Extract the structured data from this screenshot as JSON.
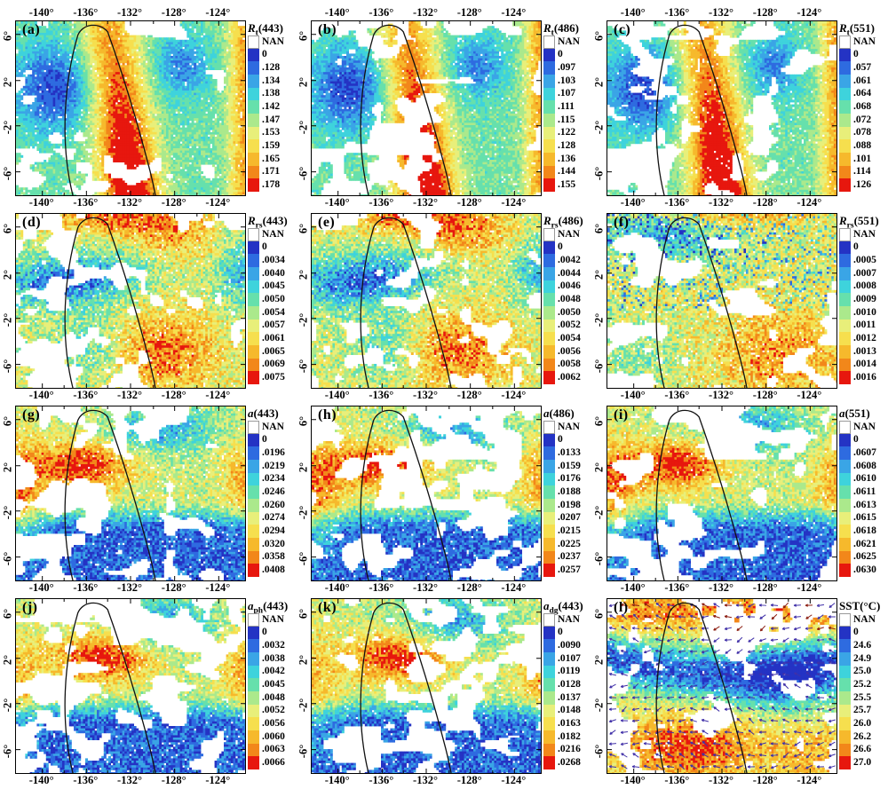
{
  "figure": {
    "x_ticks": [
      "-140°",
      "-136°",
      "-132°",
      "-128°",
      "-124°"
    ],
    "y_ticks": [
      "6°",
      "2°",
      "-2°",
      "-6°"
    ],
    "palette": [
      "#ffffff",
      "#2433c4",
      "#2e6be0",
      "#3aa5e6",
      "#3ed3dc",
      "#66e0ac",
      "#abe98c",
      "#e8ef7a",
      "#f6df4e",
      "#f6b92c",
      "#f2871a",
      "#e7170e"
    ],
    "contour_color": "#111111",
    "arrow_color": "#4030a8",
    "arrow_color_alt": "#8b1c10",
    "panels": [
      {
        "letter": "(a)",
        "sym": "R",
        "sub": "t",
        "arg": "(443)",
        "italic": true,
        "pattern": "rt",
        "cbar": [
          "NAN",
          "0",
          ".128",
          ".134",
          ".138",
          ".142",
          ".147",
          ".153",
          ".159",
          ".165",
          ".171",
          ".178"
        ]
      },
      {
        "letter": "(b)",
        "sym": "R",
        "sub": "t",
        "arg": "(486)",
        "italic": true,
        "pattern": "rt",
        "cbar": [
          "NAN",
          "0",
          ".097",
          ".103",
          ".107",
          ".111",
          ".115",
          ".122",
          ".128",
          ".136",
          ".144",
          ".155"
        ]
      },
      {
        "letter": "(c)",
        "sym": "R",
        "sub": "t",
        "arg": "(551)",
        "italic": true,
        "pattern": "rt",
        "cbar": [
          "NAN",
          "0",
          ".057",
          ".061",
          ".064",
          ".068",
          ".072",
          ".078",
          ".088",
          ".101",
          ".114",
          ".126"
        ]
      },
      {
        "letter": "(d)",
        "sym": "R",
        "sub": "rs",
        "arg": "(443)",
        "italic": true,
        "pattern": "rrs",
        "cbar": [
          "NAN",
          "0",
          ".0034",
          ".0040",
          ".0045",
          ".0050",
          ".0054",
          ".0057",
          ".0061",
          ".0065",
          ".0069",
          ".0075"
        ]
      },
      {
        "letter": "(e)",
        "sym": "R",
        "sub": "rs",
        "arg": "(486)",
        "italic": true,
        "pattern": "rrs",
        "cbar": [
          "NAN",
          "0",
          ".0042",
          ".0044",
          ".0046",
          ".0048",
          ".0050",
          ".0052",
          ".0054",
          ".0056",
          ".0058",
          ".0062"
        ]
      },
      {
        "letter": "(f)",
        "sym": "R",
        "sub": "rs",
        "arg": "(551)",
        "italic": true,
        "pattern": "rrs551",
        "cbar": [
          "NAN",
          "0",
          ".0005",
          ".0007",
          ".0008",
          ".0009",
          ".0010",
          ".0011",
          ".0012",
          ".0013",
          ".0014",
          ".0016"
        ]
      },
      {
        "letter": "(g)",
        "sym": "a",
        "sub": "",
        "arg": "(443)",
        "italic": true,
        "pattern": "abs",
        "cbar": [
          "NAN",
          "0",
          ".0196",
          ".0219",
          ".0234",
          ".0246",
          ".0260",
          ".0274",
          ".0294",
          ".0320",
          ".0358",
          ".0408"
        ]
      },
      {
        "letter": "(h)",
        "sym": "a",
        "sub": "",
        "arg": "(486)",
        "italic": true,
        "pattern": "abs",
        "cbar": [
          "NAN",
          "0",
          ".0133",
          ".0159",
          ".0176",
          ".0188",
          ".0198",
          ".0207",
          ".0215",
          ".0225",
          ".0237",
          ".0257"
        ]
      },
      {
        "letter": "(i)",
        "sym": "a",
        "sub": "",
        "arg": "(551)",
        "italic": true,
        "pattern": "abs",
        "cbar": [
          "NAN",
          "0",
          ".0607",
          ".0608",
          ".0610",
          ".0611",
          ".0613",
          ".0615",
          ".0618",
          ".0621",
          ".0625",
          ".0630"
        ]
      },
      {
        "letter": "(j)",
        "sym": "a",
        "sub": "ph",
        "arg": "(443)",
        "italic": true,
        "pattern": "abs2",
        "cbar": [
          "NAN",
          "0",
          ".0032",
          ".0038",
          ".0042",
          ".0045",
          ".0048",
          ".0052",
          ".0056",
          ".0060",
          ".0063",
          ".0066"
        ]
      },
      {
        "letter": "(k)",
        "sym": "a",
        "sub": "dg",
        "arg": "(443)",
        "italic": true,
        "pattern": "abs2",
        "cbar": [
          "NAN",
          "0",
          ".0090",
          ".0107",
          ".0119",
          ".0128",
          ".0137",
          ".0148",
          ".0163",
          ".0182",
          ".0216",
          ".0268"
        ]
      },
      {
        "letter": "(l)",
        "sym": "SST",
        "sub": "",
        "arg": "(°C)",
        "italic": false,
        "pattern": "sst",
        "cbar": [
          "NAN",
          "0",
          "24.6",
          "24.9",
          "25.0",
          "25.2",
          "25.5",
          "25.7",
          "26.0",
          "26.2",
          "26.6",
          "27.0"
        ]
      }
    ]
  }
}
